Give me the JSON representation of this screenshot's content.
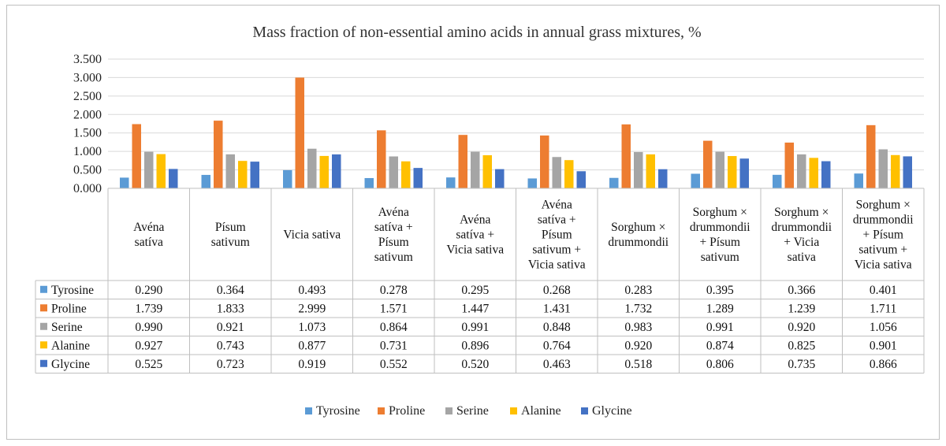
{
  "chart_data": {
    "type": "bar",
    "title": "Mass fraction of non-essential amino acids in annual grass mixtures, %",
    "xlabel": "",
    "ylabel": "",
    "ylim": [
      0,
      3.5
    ],
    "yticks": [
      "0.000",
      "0.500",
      "1.000",
      "1.500",
      "2.000",
      "2.500",
      "3.000",
      "3.500"
    ],
    "grid": true,
    "legend": "bottom",
    "data_table": true,
    "categories": [
      [
        "Avéna",
        "satíva"
      ],
      [
        "Písum",
        "sativum"
      ],
      [
        "Vicia sativa"
      ],
      [
        "Avéna",
        "satíva +",
        "Písum",
        "sativum"
      ],
      [
        "Avéna",
        "satíva +",
        "Vicia sativa"
      ],
      [
        "Avéna",
        "satíva +",
        "Písum",
        "sativum +",
        "Vicia sativa"
      ],
      [
        "Sorghum ×",
        "drummondii"
      ],
      [
        "Sorghum ×",
        "drummondii",
        "+ Písum",
        "sativum"
      ],
      [
        "Sorghum ×",
        "drummondii",
        "+ Vicia",
        "sativa"
      ],
      [
        "Sorghum ×",
        "drummondii",
        "+ Písum",
        "sativum +",
        "Vicia sativa"
      ]
    ],
    "series": [
      {
        "name": "Tyrosine",
        "color": "#5b9bd5",
        "values": [
          0.29,
          0.364,
          0.493,
          0.278,
          0.295,
          0.268,
          0.283,
          0.395,
          0.366,
          0.401
        ],
        "labels": [
          "0.290",
          "0.364",
          "0.493",
          "0.278",
          "0.295",
          "0.268",
          "0.283",
          "0.395",
          "0.366",
          "0.401"
        ]
      },
      {
        "name": "Proline",
        "color": "#ed7d31",
        "values": [
          1.739,
          1.833,
          2.999,
          1.571,
          1.447,
          1.431,
          1.732,
          1.289,
          1.239,
          1.711
        ],
        "labels": [
          "1.739",
          "1.833",
          "2.999",
          "1.571",
          "1.447",
          "1.431",
          "1.732",
          "1.289",
          "1.239",
          "1.711"
        ]
      },
      {
        "name": "Serine",
        "color": "#a5a5a5",
        "values": [
          0.99,
          0.921,
          1.073,
          0.864,
          0.991,
          0.848,
          0.983,
          0.991,
          0.92,
          1.056
        ],
        "labels": [
          "0.990",
          "0.921",
          "1.073",
          "0.864",
          "0.991",
          "0.848",
          "0.983",
          "0.991",
          "0.920",
          "1.056"
        ]
      },
      {
        "name": "Alanine",
        "color": "#ffc000",
        "values": [
          0.927,
          0.743,
          0.877,
          0.731,
          0.896,
          0.764,
          0.92,
          0.874,
          0.825,
          0.901
        ],
        "labels": [
          "0.927",
          "0.743",
          "0.877",
          "0.731",
          "0.896",
          "0.764",
          "0.920",
          "0.874",
          "0.825",
          "0.901"
        ]
      },
      {
        "name": "Glycine",
        "color": "#4472c4",
        "values": [
          0.525,
          0.723,
          0.919,
          0.552,
          0.52,
          0.463,
          0.518,
          0.806,
          0.735,
          0.866
        ],
        "labels": [
          "0.525",
          "0.723",
          "0.919",
          "0.552",
          "0.520",
          "0.463",
          "0.518",
          "0.806",
          "0.735",
          "0.866"
        ]
      }
    ]
  }
}
